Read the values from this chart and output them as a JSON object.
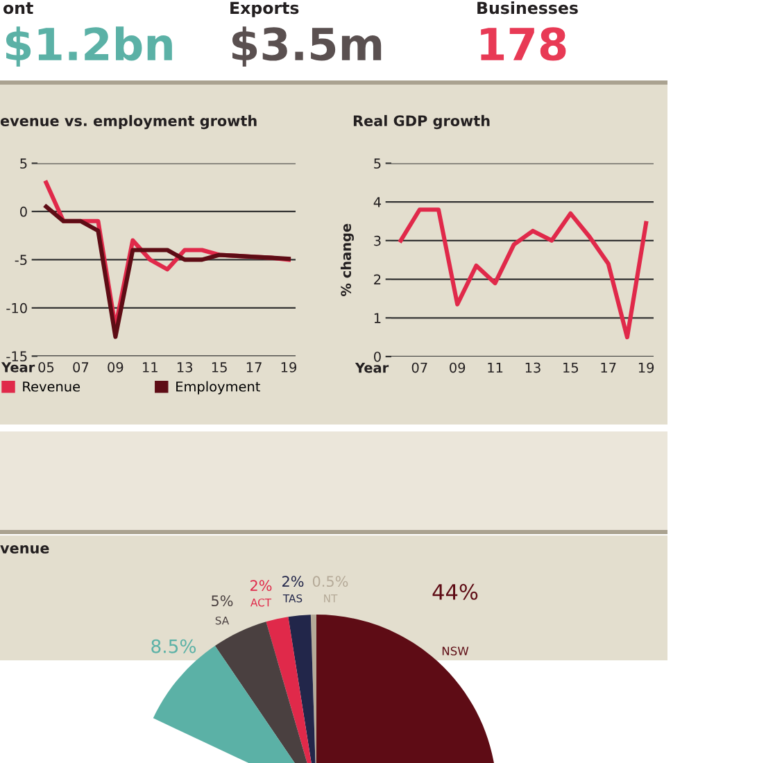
{
  "chart_data": [
    {
      "type": "other",
      "annotations": [
        "ont",
        "$1.2bn",
        "Exports",
        "$3.5m",
        "Businesses",
        "178"
      ],
      "colors": [
        "#231f20",
        "#5bb1a6",
        "#231f20",
        "#5a5050",
        "#231f20",
        "#e83a55"
      ]
    },
    {
      "type": "line",
      "title": "evenue vs. employment growth",
      "xlabel": "Year",
      "categories": [
        "05",
        null,
        "07",
        null,
        "09",
        null,
        "11",
        null,
        "13",
        null,
        "15",
        null,
        "17",
        null,
        "19"
      ],
      "series": [
        {
          "name": "Revenue",
          "color": "#e0294a",
          "values": [
            3,
            -1,
            -1,
            -1,
            -12,
            -3,
            -5,
            -6,
            -4,
            -4,
            -4.5,
            -4.6,
            -4.7,
            -4.8,
            -5
          ]
        },
        {
          "name": "Employment",
          "color": "#5e0c15",
          "values": [
            0.5,
            -1,
            -1,
            -2,
            -13,
            -4,
            -4,
            -4,
            -5,
            -5,
            -4.5,
            -4.6,
            -4.7,
            -4.8,
            -4.9
          ]
        }
      ],
      "ylim": [
        -15,
        5
      ],
      "yticks": [
        -15,
        -10,
        -5,
        0,
        5
      ],
      "grid": "y",
      "legend": "bottom",
      "marker": "none",
      "line_style": "solid"
    },
    {
      "type": "line",
      "title": "Real GDP growth",
      "xlabel": "Year",
      "ylabel": "% change",
      "categories": [
        null,
        "07",
        null,
        "09",
        null,
        "11",
        null,
        "13",
        null,
        "15",
        null,
        "17",
        null,
        "19"
      ],
      "series": [
        {
          "color": "#e0294a",
          "values": [
            3.0,
            3.8,
            3.8,
            1.35,
            2.35,
            1.9,
            2.9,
            3.25,
            3.0,
            3.7,
            3.1,
            2.4,
            0.5,
            3.45
          ]
        }
      ],
      "ylim": [
        0,
        5
      ],
      "yticks": [
        0,
        1,
        2,
        3,
        4,
        5
      ],
      "grid": "y",
      "marker": "none",
      "line_style": "solid"
    },
    {
      "type": "pie",
      "title": "venue",
      "categories": [
        "NSW",
        "NT",
        "TAS",
        "ACT",
        "SA",
        null
      ],
      "values": [
        44,
        0.5,
        2,
        2,
        5,
        8.5
      ],
      "colors": [
        "#5e0c15",
        "#b5aa98",
        "#22264a",
        "#e0294a",
        "#4a4040",
        "#5bb1a6"
      ],
      "value_labels": [
        "44%",
        "0.5%",
        "2%",
        "2%",
        "5%",
        "8.5%"
      ]
    }
  ]
}
